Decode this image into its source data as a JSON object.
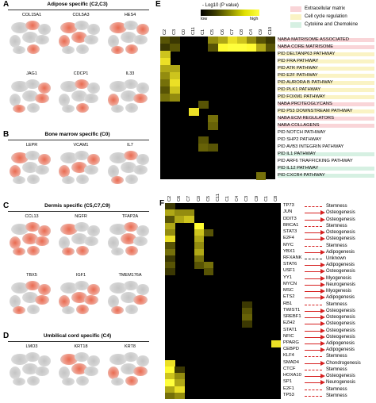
{
  "panels": {
    "A": {
      "letter": "A",
      "title": "Adipose specific (C2,C3)",
      "genes": [
        "COL15A1",
        "COL5A3",
        "HES4",
        "JAG1",
        "CDCP1",
        "IL33"
      ]
    },
    "B": {
      "letter": "B",
      "title": "Bone marrow specific (C0)",
      "genes": [
        "LEPR",
        "VCAM1",
        "IL7"
      ]
    },
    "C": {
      "letter": "C",
      "title": "Dermis specific (C5,C7,C9)",
      "genes": [
        "CCL13",
        "NGFR",
        "TFAP2A",
        "TBX5",
        "IGF1",
        "TMEM176A"
      ]
    },
    "D": {
      "letter": "D",
      "title": "Umbilical cord specific (C4)",
      "genes": [
        "LMO3",
        "KRT18",
        "KRT8"
      ]
    },
    "E": {
      "letter": "E"
    },
    "F": {
      "letter": "F"
    }
  },
  "legend_e": {
    "title": "- Log10 (P value)",
    "low": "low",
    "high": "high",
    "categories": [
      {
        "label": "Extracellular matrix",
        "color": "#f9d5d8"
      },
      {
        "label": "Cell cycle regulation",
        "color": "#faf3c4"
      },
      {
        "label": "Cytokine and Chemokine",
        "color": "#d6f0e2"
      }
    ]
  },
  "chart_data": [
    {
      "type": "heatmap",
      "panel": "E",
      "columns": [
        "C2",
        "C3",
        "C0",
        "C11",
        "C1",
        "C5",
        "C6",
        "C7",
        "C8",
        "C4",
        "C9",
        "C10"
      ],
      "rows": [
        {
          "label": "NABA MATRISOME ASSOCIATED",
          "category": "Extracellular matrix"
        },
        {
          "label": "NABA CORE MATRISOME",
          "category": "Extracellular matrix"
        },
        {
          "label": "PID DELTANP63 PATHWAY",
          "category": "Cell cycle regulation"
        },
        {
          "label": "PID FRA PATHWAY",
          "category": "Cell cycle regulation"
        },
        {
          "label": "PID ATR PATHWAY",
          "category": "Cell cycle regulation"
        },
        {
          "label": "PID E2F PATHWAY",
          "category": "Cell cycle regulation"
        },
        {
          "label": "PID AURORA B PATHWAY",
          "category": "Cell cycle regulation"
        },
        {
          "label": "PID PLK1 PATHWAY",
          "category": "Cell cycle regulation"
        },
        {
          "label": "PID FOXM1 PATHWAY",
          "category": "Cell cycle regulation"
        },
        {
          "label": "NABA PROTEOGLYCANS",
          "category": "Extracellular matrix"
        },
        {
          "label": "PID P53 DOWNSTREAM PATHWAY",
          "category": "Cell cycle regulation"
        },
        {
          "label": "NABA ECM REGULATORS",
          "category": "Extracellular matrix"
        },
        {
          "label": "NABA COLLAGENS",
          "category": "Extracellular matrix"
        },
        {
          "label": "PID NOTCH PATHWAY",
          "category": ""
        },
        {
          "label": "PID SHP2 PATHWAY",
          "category": ""
        },
        {
          "label": "PID AVB3 INTEGRIN PATHWAY",
          "category": ""
        },
        {
          "label": "PID IL1 PATHWAY",
          "category": "Cytokine and Chemokine"
        },
        {
          "label": "PID ARF6 TRAFFICKING PATHWAY",
          "category": ""
        },
        {
          "label": "PID IL12 PATHWAY",
          "category": "Cytokine and Chemokine"
        },
        {
          "label": "PID CXCR4 PATHWAY",
          "category": "Cytokine and Chemokine"
        }
      ],
      "values": [
        [
          0.3,
          0.2,
          0,
          0,
          0,
          0.5,
          0.6,
          0.8,
          0.7,
          0.5,
          0.3,
          0.2
        ],
        [
          0.2,
          0.3,
          0,
          0,
          0,
          0.3,
          0.9,
          1.0,
          1.0,
          0.9,
          0.6,
          0.3
        ],
        [
          0.7,
          0,
          0,
          0,
          0,
          0,
          0,
          0,
          0,
          0,
          0,
          0
        ],
        [
          0.8,
          0,
          0,
          0,
          0,
          0,
          0,
          0,
          0,
          0,
          0,
          0
        ],
        [
          0.6,
          0.6,
          0,
          0,
          0,
          0,
          0,
          0,
          0,
          0,
          0,
          0
        ],
        [
          0.5,
          0.7,
          0,
          0,
          0,
          0,
          0,
          0,
          0,
          0,
          0,
          0
        ],
        [
          0.4,
          0.8,
          0,
          0,
          0,
          0,
          0,
          0,
          0,
          0,
          0,
          0
        ],
        [
          0.3,
          0.7,
          0,
          0,
          0,
          0,
          0,
          0,
          0,
          0,
          0,
          0
        ],
        [
          0.4,
          0.5,
          0,
          0,
          0,
          0,
          0,
          0,
          0,
          0,
          0,
          0
        ],
        [
          0,
          0,
          0,
          0,
          0.3,
          0,
          0,
          0,
          0,
          0,
          0,
          0
        ],
        [
          0,
          0,
          0,
          0.8,
          0,
          0,
          0,
          0,
          0,
          0,
          0,
          0
        ],
        [
          0,
          0,
          0,
          0,
          0,
          0.4,
          0,
          0,
          0,
          0,
          0,
          0
        ],
        [
          0,
          0,
          0,
          0,
          0,
          0.35,
          0,
          0,
          0,
          0,
          0,
          0
        ],
        [
          0,
          0,
          0,
          0,
          0,
          0,
          0,
          0,
          0,
          0,
          0,
          0
        ],
        [
          0,
          0,
          0,
          0,
          0.3,
          0,
          0,
          0,
          0,
          0,
          0,
          0
        ],
        [
          0,
          0,
          0,
          0,
          0.35,
          0.3,
          0,
          0,
          0,
          0,
          0,
          0
        ],
        [
          0,
          0,
          0,
          0,
          0,
          0,
          0,
          0,
          0,
          0,
          0,
          0
        ],
        [
          0,
          0,
          0,
          0,
          0,
          0,
          0,
          0,
          0,
          0,
          0,
          0
        ],
        [
          0,
          0,
          0,
          0,
          0,
          0,
          0,
          0,
          0,
          0,
          0,
          0
        ],
        [
          0,
          0,
          0,
          0,
          0,
          0,
          0,
          0,
          0,
          0,
          0.4,
          0
        ]
      ]
    },
    {
      "type": "heatmap",
      "panel": "F",
      "columns": [
        "C2",
        "C6",
        "C7",
        "C0",
        "C5",
        "C11",
        "C1",
        "C4",
        "C3",
        "C9",
        "C1",
        "C8"
      ],
      "rows": [
        {
          "label": "TP73",
          "fate": "Stemness",
          "arrow": "dashed"
        },
        {
          "label": "JUN",
          "fate": "Osteogenesis",
          "arrow": "solid"
        },
        {
          "label": "DDIT3",
          "fate": "Osteogenesis",
          "arrow": "solid"
        },
        {
          "label": "BRCA1",
          "fate": "Stemness",
          "arrow": "dashed"
        },
        {
          "label": "STAT3",
          "fate": "Osteogenesis",
          "arrow": "solid"
        },
        {
          "label": "E2F4",
          "fate": "Osteogenesis",
          "arrow": "solid"
        },
        {
          "label": "MYC",
          "fate": "Stemness",
          "arrow": "dashed"
        },
        {
          "label": "YBX1",
          "fate": "Adipogenesis",
          "arrow": "solid"
        },
        {
          "label": "RFXANK",
          "fate": "Unknown",
          "arrow": "dashed-black"
        },
        {
          "label": "STAT6",
          "fate": "Adipogenesis",
          "arrow": "solid"
        },
        {
          "label": "USF1",
          "fate": "Osteogenesis",
          "arrow": "solid"
        },
        {
          "label": "YY1",
          "fate": "Myogenesis",
          "arrow": "solid"
        },
        {
          "label": "MYCN",
          "fate": "Neurogenesis",
          "arrow": "solid"
        },
        {
          "label": "MSC",
          "fate": "Myogenesis",
          "arrow": "solid"
        },
        {
          "label": "ETS2",
          "fate": "Adipogenesis",
          "arrow": "solid"
        },
        {
          "label": "RB1",
          "fate": "Stemness",
          "arrow": "dashed"
        },
        {
          "label": "TWIST1",
          "fate": "Osteogenesis",
          "arrow": "solid"
        },
        {
          "label": "SREBF1",
          "fate": "Osteogenesis",
          "arrow": "solid"
        },
        {
          "label": "EZH2",
          "fate": "Osteogenesis",
          "arrow": "solid"
        },
        {
          "label": "STAT1",
          "fate": "Osteogenesis",
          "arrow": "solid"
        },
        {
          "label": "NFIC",
          "fate": "Osteogenesis",
          "arrow": "solid"
        },
        {
          "label": "PPARG",
          "fate": "Adipogenesis",
          "arrow": "solid"
        },
        {
          "label": "CEBPD",
          "fate": "Adipogenesis",
          "arrow": "solid"
        },
        {
          "label": "KLF4",
          "fate": "Stemness",
          "arrow": "dashed"
        },
        {
          "label": "SMAD4",
          "fate": "Chondrogenesis",
          "arrow": "solid"
        },
        {
          "label": "CTCF",
          "fate": "Stemness",
          "arrow": "dashed"
        },
        {
          "label": "HOXA10",
          "fate": "Osteogenesis",
          "arrow": "solid"
        },
        {
          "label": "SP1",
          "fate": "Neurogenesis",
          "arrow": "solid"
        },
        {
          "label": "E2F1",
          "fate": "Stemness",
          "arrow": "dashed"
        },
        {
          "label": "TP53",
          "fate": "Stemness",
          "arrow": "dashed"
        }
      ],
      "values": [
        [
          0.2,
          0,
          0,
          0,
          0,
          0,
          0,
          0,
          0,
          0,
          0,
          0
        ],
        [
          0.6,
          0.5,
          0.5,
          0,
          0,
          0,
          0,
          0,
          0,
          0,
          0,
          0
        ],
        [
          0.3,
          0.6,
          0.7,
          0,
          0,
          0,
          0,
          0,
          0,
          0,
          0,
          0
        ],
        [
          0.6,
          0,
          0,
          0.9,
          0,
          0,
          0,
          0,
          0,
          0,
          0,
          0
        ],
        [
          0.5,
          0,
          0,
          0.7,
          0.3,
          0,
          0,
          0,
          0,
          0,
          0,
          0
        ],
        [
          0.8,
          0,
          0,
          0.6,
          0,
          0,
          0,
          0,
          0,
          0,
          0,
          0
        ],
        [
          0.3,
          0,
          0,
          0.5,
          0,
          0,
          0,
          0,
          0,
          0,
          0,
          0
        ],
        [
          0.4,
          0,
          0,
          0.6,
          0,
          0,
          0,
          0,
          0,
          0,
          0,
          0
        ],
        [
          0.2,
          0,
          0,
          0.4,
          0,
          0,
          0,
          0,
          0,
          0,
          0,
          0
        ],
        [
          0.3,
          0,
          0,
          0.3,
          0.4,
          0,
          0,
          0,
          0,
          0,
          0,
          0
        ],
        [
          0.2,
          0,
          0,
          0,
          0.3,
          0,
          0,
          0,
          0,
          0,
          0,
          0
        ],
        [
          0,
          0,
          0,
          0,
          0,
          0,
          0,
          0,
          0,
          0,
          0,
          0
        ],
        [
          0,
          0,
          0,
          0,
          0,
          0,
          0,
          0,
          0,
          0,
          0,
          0
        ],
        [
          0,
          0,
          0,
          0,
          0,
          0,
          0,
          0,
          0,
          0,
          0,
          0
        ],
        [
          0,
          0,
          0,
          0,
          0,
          0,
          0,
          0,
          0,
          0,
          0,
          0
        ],
        [
          0,
          0,
          0,
          0,
          0,
          0,
          0,
          0,
          0.2,
          0,
          0,
          0
        ],
        [
          0,
          0,
          0,
          0,
          0,
          0,
          0,
          0,
          0.3,
          0,
          0,
          0
        ],
        [
          0,
          0,
          0,
          0,
          0,
          0,
          0,
          0,
          0.35,
          0,
          0,
          0
        ],
        [
          0,
          0,
          0,
          0,
          0,
          0,
          0,
          0,
          0.2,
          0,
          0,
          0
        ],
        [
          0,
          0,
          0,
          0,
          0,
          0,
          0,
          0,
          0,
          0,
          0,
          0
        ],
        [
          0,
          0,
          0,
          0,
          0,
          0,
          0,
          0,
          0,
          0,
          0,
          0
        ],
        [
          0,
          0,
          0,
          0,
          0,
          0,
          0,
          0,
          0,
          0,
          0,
          0.8
        ],
        [
          0,
          0,
          0,
          0,
          0,
          0,
          0,
          0,
          0,
          0,
          0,
          0
        ],
        [
          0,
          0,
          0,
          0,
          0,
          0,
          0,
          0,
          0,
          0,
          0,
          0
        ],
        [
          0.8,
          0,
          0,
          0,
          0,
          0,
          0,
          0,
          0,
          0,
          0,
          0
        ],
        [
          0.9,
          0.2,
          0,
          0,
          0,
          0,
          0,
          0,
          0,
          0,
          0,
          0
        ],
        [
          0.7,
          0.5,
          0,
          0,
          0,
          0,
          0,
          0,
          0,
          0,
          0,
          0
        ],
        [
          1.0,
          0.6,
          0,
          0,
          0,
          0,
          0,
          0,
          0,
          0,
          0,
          0
        ],
        [
          0.6,
          0.8,
          0,
          0,
          0,
          0,
          0,
          0,
          0,
          0,
          0,
          0
        ],
        [
          0.4,
          0.5,
          0,
          0,
          0,
          0,
          0,
          0,
          0,
          0,
          0,
          0
        ]
      ]
    }
  ]
}
